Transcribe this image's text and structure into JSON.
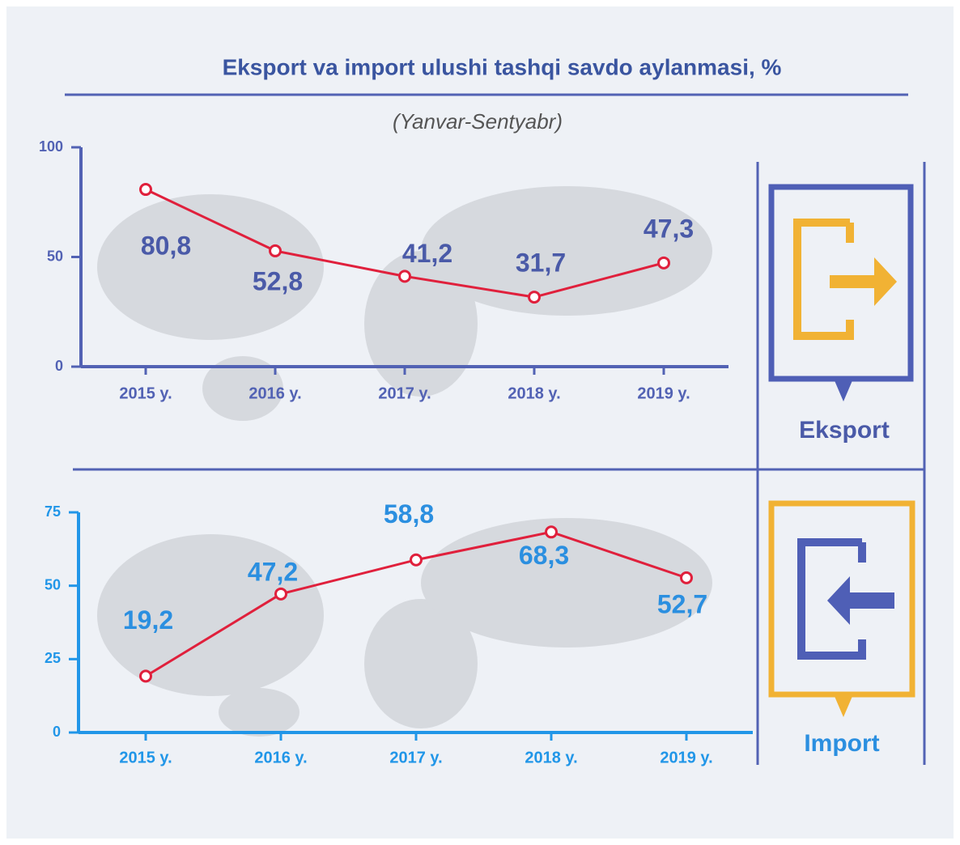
{
  "title": "Eksport va import ulushi tashqi savdo aylanmasi, %",
  "subtitle": "(Yanvar-Sentyabr)",
  "chart_data": [
    {
      "type": "line",
      "panel_label": "Eksport",
      "categories": [
        "2015 y.",
        "2016 y.",
        "2017 y.",
        "2018 y.",
        "2019 y."
      ],
      "values": [
        80.8,
        52.8,
        41.2,
        31.7,
        47.3
      ],
      "value_labels": [
        "80,8",
        "52,8",
        "41,2",
        "31,7",
        "47,3"
      ],
      "color": "#e0203c",
      "axis_color": "#5262b4",
      "label_color": "#4a5aa8",
      "ylim": [
        0,
        100
      ],
      "yticks": [
        0,
        50,
        100
      ]
    },
    {
      "type": "line",
      "panel_label": "Import",
      "categories": [
        "2015 y.",
        "2016 y.",
        "2017 y.",
        "2018 y.",
        "2019 y."
      ],
      "values": [
        19.2,
        47.2,
        58.8,
        68.3,
        52.7
      ],
      "value_labels": [
        "19,2",
        "47,2",
        "58,8",
        "68,3",
        "52,7"
      ],
      "color": "#e0203c",
      "axis_color": "#2196e8",
      "label_color": "#2b8fe0",
      "ylim": [
        0,
        75
      ],
      "yticks": [
        0,
        25,
        50,
        75
      ]
    }
  ]
}
